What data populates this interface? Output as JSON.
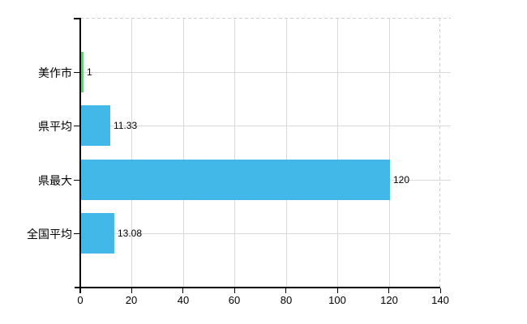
{
  "chart_data": {
    "type": "bar",
    "orientation": "horizontal",
    "categories": [
      "美作市",
      "県平均",
      "県最大",
      "全国平均"
    ],
    "values": [
      1,
      11.33,
      120,
      13.08
    ],
    "value_labels": [
      "1",
      "11.33",
      "120",
      "13.08"
    ],
    "bar_colors": [
      "#6ec87d",
      "#41b8e8",
      "#41b8e8",
      "#41b8e8"
    ],
    "xlim": [
      0,
      140
    ],
    "xticks": [
      0,
      20,
      40,
      60,
      80,
      100,
      120,
      140
    ],
    "xtick_labels": [
      "0",
      "20",
      "40",
      "60",
      "80",
      "100",
      "120",
      "140"
    ],
    "grid": true,
    "legend": "none",
    "plot_border_style": "dashed-top-right"
  },
  "colors": {
    "background": "#ffffff",
    "axis": "#000000",
    "gridline": "#d7dad7",
    "dashed_border": "#cfccce",
    "text": "#000000",
    "bar_blue": "#41b8e8",
    "bar_green": "#6ec87d"
  }
}
